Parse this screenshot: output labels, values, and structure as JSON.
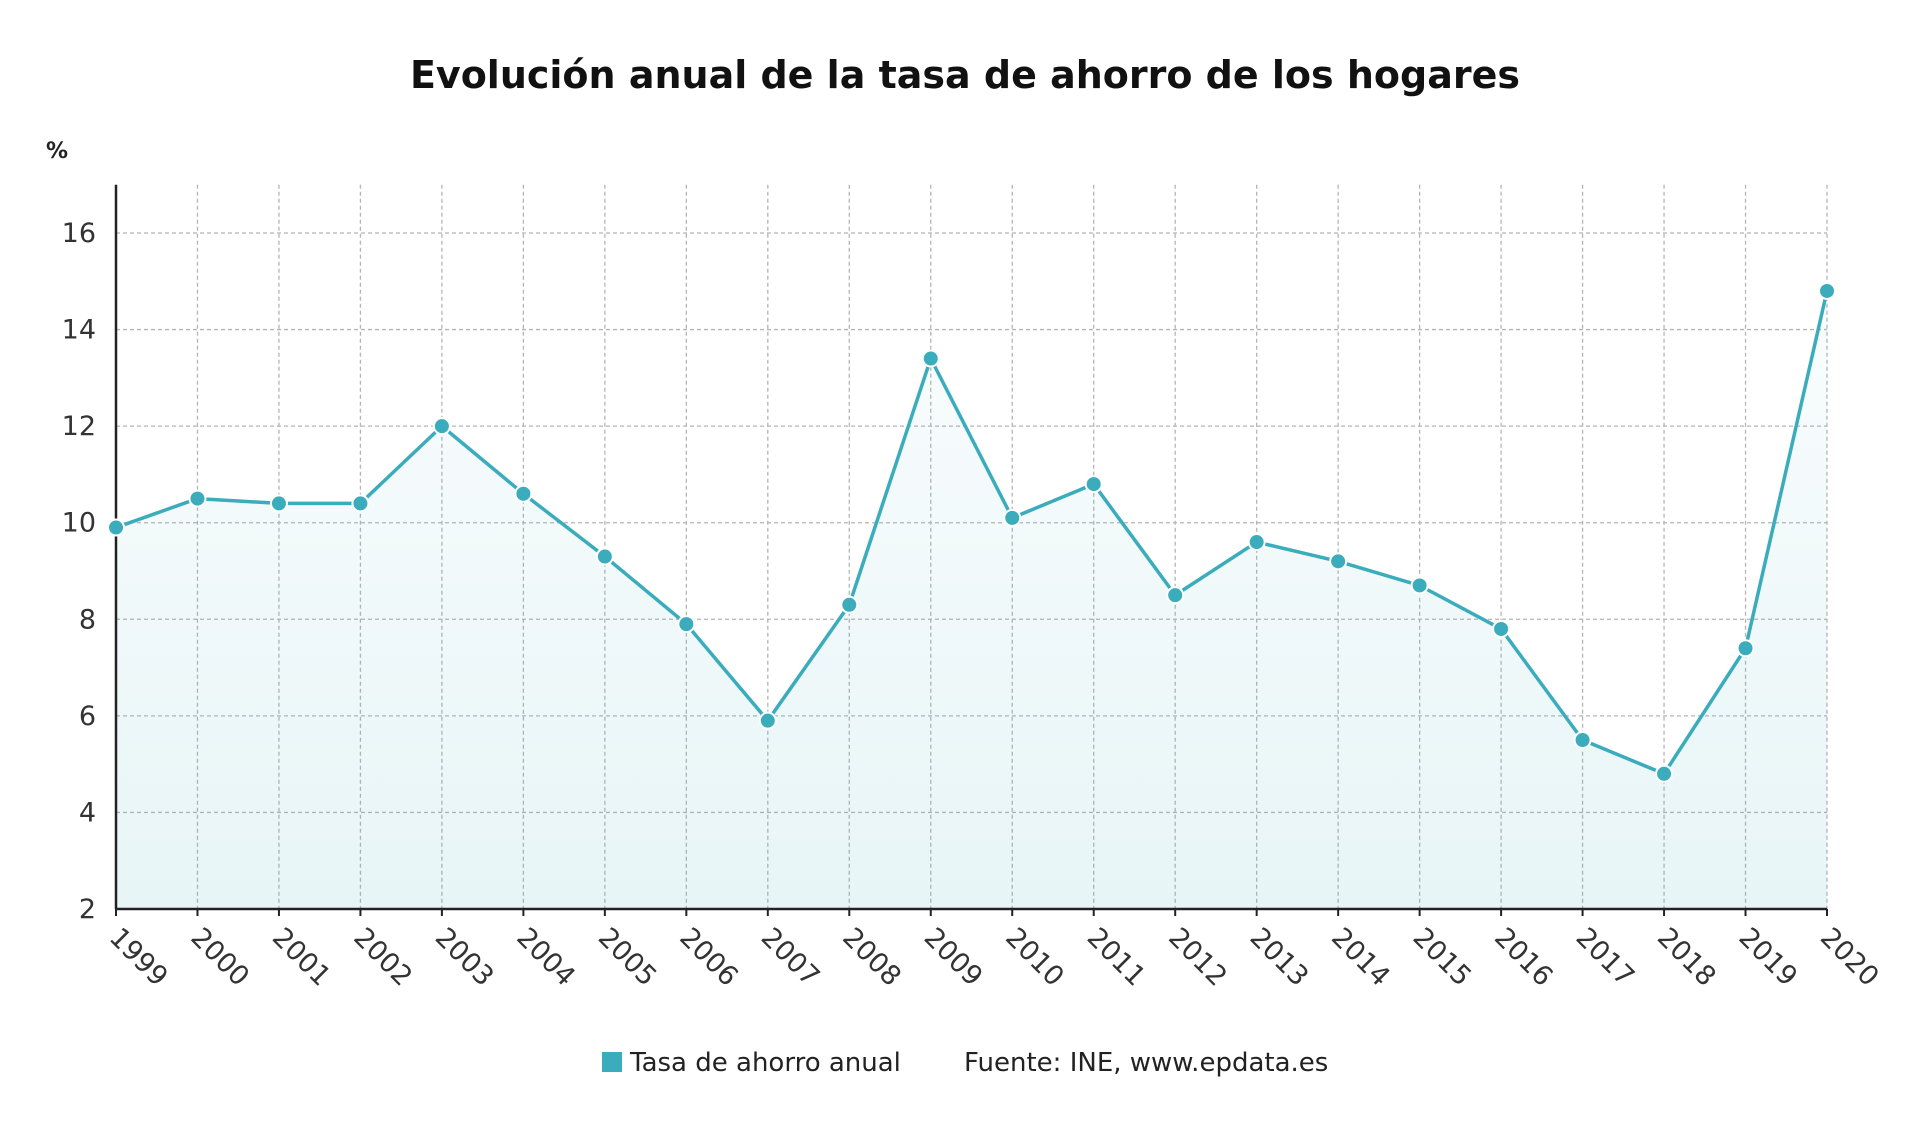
{
  "chart_data": {
    "type": "line",
    "title": "Evolución anual de la tasa de ahorro de los hogares",
    "ylabel": "%",
    "xlabel": "",
    "ylim": [
      2,
      17
    ],
    "yticks": [
      2,
      4,
      6,
      8,
      10,
      12,
      14,
      16
    ],
    "grid": true,
    "legend_position": "bottom",
    "categories": [
      "1999",
      "2000",
      "2001",
      "2002",
      "2003",
      "2004",
      "2005",
      "2006",
      "2007",
      "2008",
      "2009",
      "2010",
      "2011",
      "2012",
      "2013",
      "2014",
      "2015",
      "2016",
      "2017",
      "2018",
      "2019",
      "2020"
    ],
    "series": [
      {
        "name": "Tasa de ahorro anual",
        "color": "#3aacbc",
        "values": [
          9.9,
          10.5,
          10.4,
          10.4,
          12.0,
          10.6,
          9.3,
          7.9,
          5.9,
          8.3,
          13.4,
          10.1,
          10.8,
          8.5,
          9.6,
          9.2,
          8.7,
          7.8,
          5.5,
          4.8,
          7.4,
          14.8
        ]
      }
    ],
    "source": "Fuente: INE, www.epdata.es"
  }
}
